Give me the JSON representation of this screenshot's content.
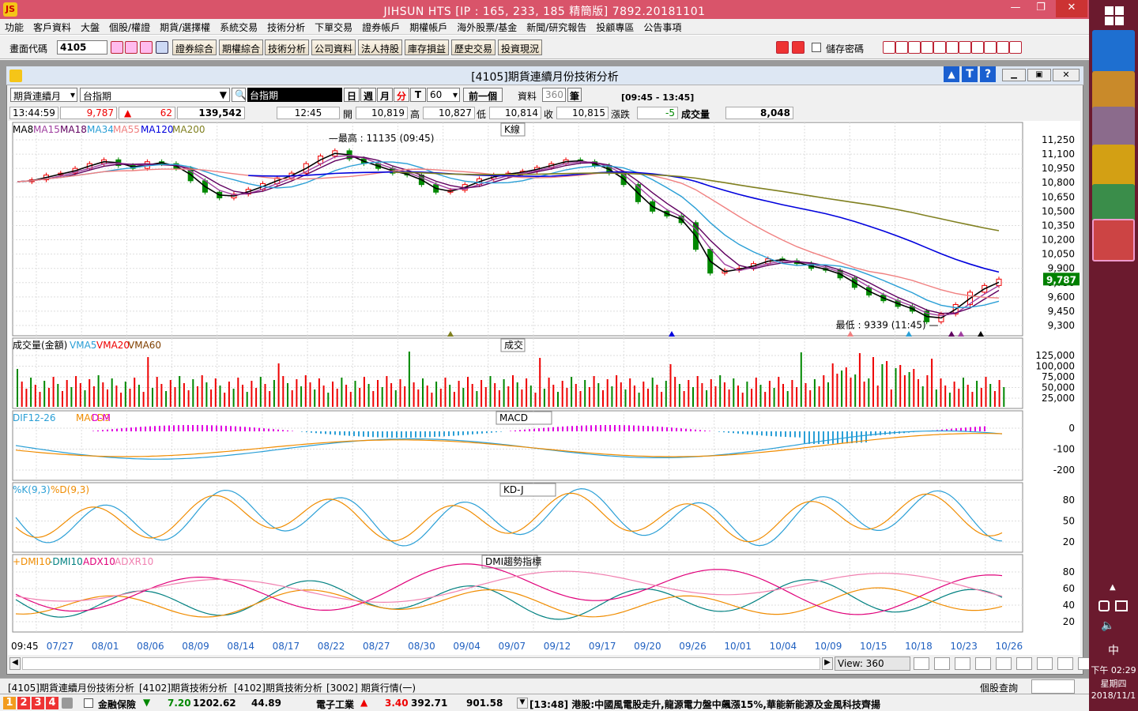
{
  "window": {
    "title": "JIHSUN HTS     [IP : 165, 233, 185 精簡版] 7892.20181101",
    "min": "—",
    "max": "❐",
    "close": "✕"
  },
  "menu": [
    "功能",
    "客戶資料",
    "大盤",
    "個股/權證",
    "期貨/選擇權",
    "系統交易",
    "技術分析",
    "下單交易",
    "證券帳戶",
    "期權帳戶",
    "海外股票/基金",
    "新聞/研究報告",
    "投顧專區",
    "公告事項"
  ],
  "toolbar": {
    "code_label": "畫面代碼",
    "code_value": "4105",
    "buttons": [
      "證券綜合",
      "期權綜合",
      "技術分析",
      "公司資料",
      "法人持股",
      "庫存損益",
      "歷史交易",
      "投資現況"
    ],
    "save_password": "儲存密碼"
  },
  "subwindow": {
    "title": "[4105]期貨連續月份技術分析",
    "contract_select": "期貨連續月",
    "symbol": "台指期",
    "symbol_display": "台指期",
    "periods": [
      "日",
      "週",
      "月",
      "分",
      "T"
    ],
    "interval": "60",
    "prev_button": "前一個",
    "data_label": "資料",
    "data_count": "360",
    "data_unit": "筆",
    "time_range": "[09:45 - 13:45]"
  },
  "quote": {
    "time": "13:44:59",
    "price": "9,787",
    "change_arrow": "▲",
    "change": "62",
    "volume": "139,542",
    "bar_time": "12:45",
    "open_label": "開",
    "open": "10,819",
    "high_label": "高",
    "high": "10,827",
    "low_label": "低",
    "low": "10,814",
    "close_label": "收",
    "close": "10,815",
    "chg_label": "漲跌",
    "chg": "-5",
    "vol_label": "成交量",
    "vol": "8,048"
  },
  "chart_data": {
    "type": "line",
    "panels": [
      {
        "name": "K線",
        "legend": [
          "MA8",
          "MA15",
          "MA18",
          "MA34",
          "MA55",
          "MA120",
          "MA200"
        ],
        "yticks": [
          "11,250",
          "11,100",
          "10,950",
          "10,800",
          "10,650",
          "10,500",
          "10,350",
          "10,200",
          "10,050",
          "9,900",
          "9,750",
          "9,600",
          "9,450",
          "9,300"
        ],
        "last_price": "9,787",
        "annotations": [
          "最高 : 11135 (09:45)",
          "最低 : 9339 (11:45)"
        ]
      },
      {
        "name": "成交",
        "legend": [
          "成交量(金額)",
          "VMA5",
          "VMA20",
          "VMA60"
        ],
        "yticks": [
          "125,000",
          "100,000",
          "75,000",
          "50,000",
          "25,000"
        ]
      },
      {
        "name": "MACD",
        "legend": [
          "DIF12-26",
          "MACD9",
          "D-M"
        ],
        "yticks": [
          "0",
          "-100",
          "-200"
        ]
      },
      {
        "name": "KD-J",
        "legend": [
          "%K(9,3)",
          "%D(9,3)"
        ],
        "yticks": [
          "80",
          "50",
          "20"
        ]
      },
      {
        "name": "DMI趨勢指標",
        "legend": [
          "+DMI10",
          "-DMI10",
          "ADX10",
          "ADXR10"
        ],
        "yticks": [
          "80",
          "60",
          "40",
          "20"
        ]
      }
    ],
    "x_start": "09:45",
    "xticks": [
      "07/27",
      "08/01",
      "08/06",
      "08/09",
      "08/14",
      "08/17",
      "08/22",
      "08/27",
      "08/30",
      "09/04",
      "09/07",
      "09/12",
      "09/17",
      "09/20",
      "09/26",
      "10/01",
      "10/04",
      "10/09",
      "10/15",
      "10/18",
      "10/23",
      "10/26"
    ],
    "price_path": [
      10810,
      10830,
      10880,
      10900,
      10950,
      11000,
      11040,
      10980,
      10950,
      11020,
      11000,
      10950,
      10820,
      10700,
      10640,
      10680,
      10730,
      10790,
      10850,
      10900,
      11000,
      11080,
      11135,
      11050,
      11000,
      10950,
      10900,
      10880,
      10780,
      10700,
      10720,
      10780,
      10840,
      10880,
      10900,
      10920,
      10960,
      11000,
      11040,
      11020,
      10980,
      10900,
      10780,
      10600,
      10500,
      10450,
      10380,
      10100,
      9850,
      9880,
      9900,
      9950,
      10000,
      9980,
      9950,
      9900,
      9880,
      9800,
      9700,
      9620,
      9560,
      9500,
      9450,
      9339,
      9420,
      9520,
      9650,
      9720,
      9787
    ],
    "view": "View: 360"
  },
  "tabs": [
    "[4105]期貨連續月份技術分析",
    "[4102]期貨技術分析",
    "[4102]期貨技術分析",
    "[3002] 期貨行情(一)"
  ],
  "tab_right": "個股查詢",
  "status": {
    "nums": [
      "1",
      "2",
      "3",
      "4"
    ],
    "item1": "金融保險",
    "item1_arrow": "▼",
    "item1_chg": "7.20",
    "item1_val": "1202.62",
    "item1_amt": "44.89",
    "item2": "電子工業",
    "item2_arrow": "▲",
    "item2_chg": "3.40",
    "item2_val": "392.71",
    "item2_amt": "901.58",
    "news": "[13:48] 港股:中國風電股走升,龍源電力盤中飆漲15%,華能新能源及金風科技齊揚"
  },
  "taskbar": {
    "ime": "中",
    "time": "下午 02:29",
    "weekday": "星期四",
    "date": "2018/11/1"
  },
  "colors": {
    "titlebar": "#d9546a",
    "up": "#e00000",
    "down": "#008000",
    "ma120": "#0000dd",
    "ma200": "#808020"
  }
}
